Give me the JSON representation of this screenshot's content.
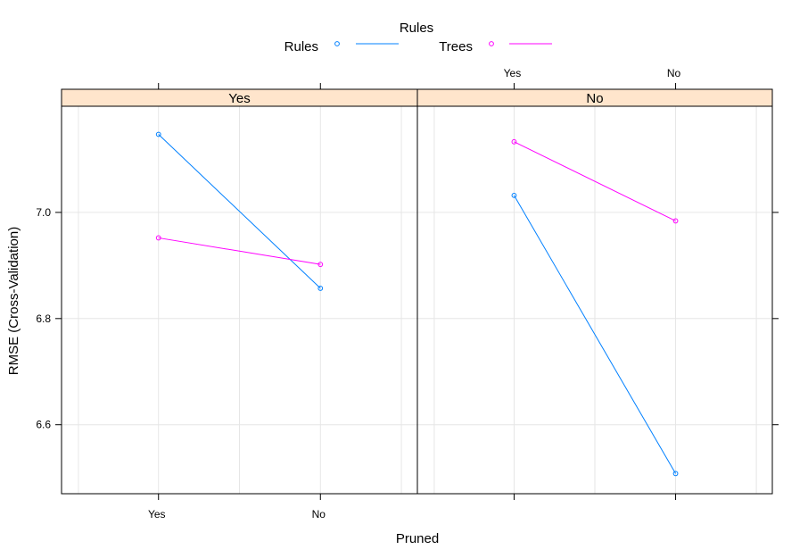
{
  "chart_data": {
    "type": "line",
    "legend": {
      "title": "Rules",
      "placement": "top",
      "entries": [
        {
          "label": "Rules",
          "color": "#0080ff"
        },
        {
          "label": "Trees",
          "color": "#ff00ff"
        }
      ]
    },
    "xlabel": "Pruned",
    "ylabel": "RMSE (Cross-Validation)",
    "x_categories": [
      "Yes",
      "No"
    ],
    "y_ticks": [
      "6.6",
      "6.8",
      "7.0"
    ],
    "ylim": [
      6.47,
      7.2
    ],
    "grid": true,
    "panels": [
      {
        "strip": "Yes",
        "series": [
          {
            "name": "Rules",
            "color": "#0080ff",
            "values": [
              7.147,
              6.857
            ]
          },
          {
            "name": "Trees",
            "color": "#ff00ff",
            "values": [
              6.952,
              6.902
            ]
          }
        ]
      },
      {
        "strip": "No",
        "series": [
          {
            "name": "Rules",
            "color": "#0080ff",
            "values": [
              7.032,
              6.508
            ]
          },
          {
            "name": "Trees",
            "color": "#ff00ff",
            "values": [
              7.133,
              6.984
            ]
          }
        ]
      }
    ]
  }
}
